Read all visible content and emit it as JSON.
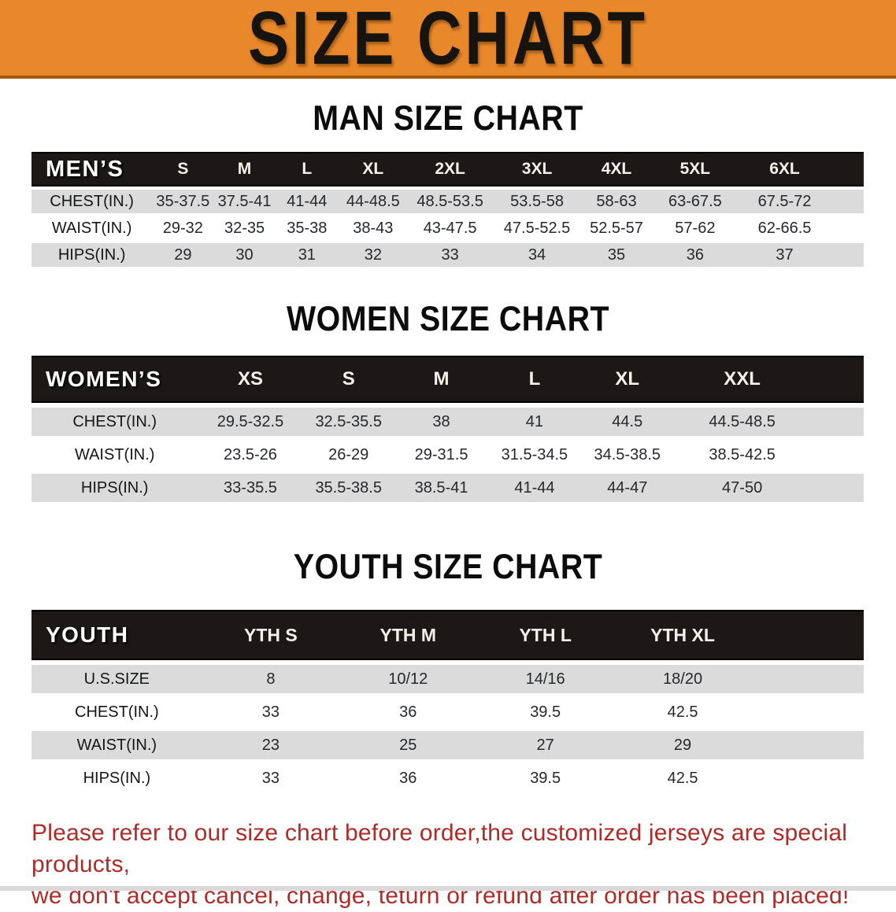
{
  "banner": {
    "title": "SIZE CHART"
  },
  "colors": {
    "banner_orange": "#E8882B",
    "header_band_black": "#1B1817",
    "row_stripe_gray": "#DBDBDB",
    "disclaimer_red": "#AE2B27"
  },
  "sections": [
    {
      "heading": "MAN SIZE CHART",
      "table": {
        "corner": "MEN’S",
        "columns": [
          "S",
          "M",
          "L",
          "XL",
          "2XL",
          "3XL",
          "4XL",
          "5XL",
          "6XL"
        ],
        "rows": [
          {
            "label": "CHEST(IN.)",
            "values": [
              "35-37.5",
              "37.5-41",
              "41-44",
              "44-48.5",
              "48.5-53.5",
              "53.5-58",
              "58-63",
              "63-67.5",
              "67.5-72"
            ]
          },
          {
            "label": "WAIST(IN.)",
            "values": [
              "29-32",
              "32-35",
              "35-38",
              "38-43",
              "43-47.5",
              "47.5-52.5",
              "52.5-57",
              "57-62",
              "62-66.5"
            ]
          },
          {
            "label": "HIPS(IN.)",
            "values": [
              "29",
              "30",
              "31",
              "32",
              "33",
              "34",
              "35",
              "36",
              "37"
            ]
          }
        ]
      }
    },
    {
      "heading": "WOMEN SIZE CHART",
      "table": {
        "corner": "WOMEN’S",
        "columns": [
          "XS",
          "S",
          "M",
          "L",
          "XL",
          "XXL"
        ],
        "rows": [
          {
            "label": "CHEST(IN.)",
            "values": [
              "29.5-32.5",
              "32.5-35.5",
              "38",
              "41",
              "44.5",
              "44.5-48.5"
            ]
          },
          {
            "label": "WAIST(IN.)",
            "values": [
              "23.5-26",
              "26-29",
              "29-31.5",
              "31.5-34.5",
              "34.5-38.5",
              "38.5-42.5"
            ]
          },
          {
            "label": "HIPS(IN.)",
            "values": [
              "33-35.5",
              "35.5-38.5",
              "38.5-41",
              "41-44",
              "44-47",
              "47-50"
            ]
          }
        ]
      }
    },
    {
      "heading": "YOUTH SIZE CHART",
      "table": {
        "corner": "YOUTH",
        "columns": [
          "YTH S",
          "YTH M",
          "YTH L",
          "YTH XL"
        ],
        "rows": [
          {
            "label": "U.S.SIZE",
            "values": [
              "8",
              "10/12",
              "14/16",
              "18/20"
            ]
          },
          {
            "label": "CHEST(IN.)",
            "values": [
              "33",
              "36",
              "39.5",
              "42.5"
            ]
          },
          {
            "label": "WAIST(IN.)",
            "values": [
              "23",
              "25",
              "27",
              "29"
            ]
          },
          {
            "label": "HIPS(IN.)",
            "values": [
              "33",
              "36",
              "39.5",
              "42.5"
            ]
          }
        ]
      }
    }
  ],
  "disclaimer": {
    "line1": "Please refer to our size chart before order,the customized jerseys are special products,",
    "line2": "we don't accept cancel, change, teturn or refund after order has been placed!"
  }
}
